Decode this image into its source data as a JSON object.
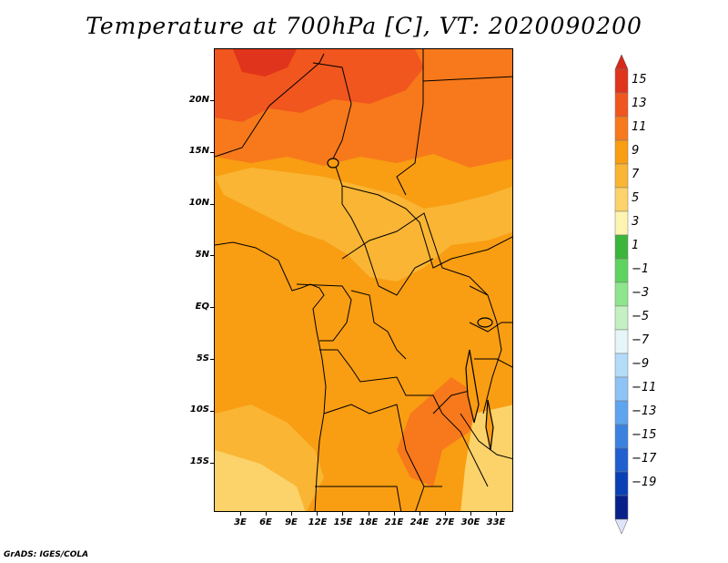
{
  "title": "Temperature at 700hPa [C], VT: 2020090200",
  "credit": "GrADS: IGES/COLA",
  "map": {
    "region": "Central Africa",
    "lon_range": [
      0,
      35
    ],
    "lat_range": [
      -20,
      25
    ],
    "ylabels": [
      "20N",
      "15N",
      "10N",
      "5N",
      "EQ",
      "5S",
      "10S",
      "15S"
    ],
    "xlabels": [
      "3E",
      "6E",
      "9E",
      "12E",
      "15E",
      "18E",
      "21E",
      "24E",
      "27E",
      "30E",
      "33E"
    ]
  },
  "colorbar": {
    "labels": [
      "15",
      "13",
      "11",
      "9",
      "7",
      "5",
      "3",
      "1",
      "−1",
      "−3",
      "−5",
      "−7",
      "−9",
      "−11",
      "−13",
      "−15",
      "−17",
      "−19"
    ],
    "colors": [
      "#e0341c",
      "#f0561e",
      "#f7791b",
      "#f99d12",
      "#f9b533",
      "#fcd36a",
      "#fdf4b2",
      "#3cb53c",
      "#5fd35f",
      "#8ee58e",
      "#c4f0c4",
      "#e6f6f8",
      "#b4dcf8",
      "#8ec4f5",
      "#5ea4ee",
      "#3b82e0",
      "#1f5fd0",
      "#0a3fb5",
      "#08208a"
    ],
    "top_arrow_color": "#d8281a",
    "bottom_arrow_color": "#e0e4fa"
  }
}
